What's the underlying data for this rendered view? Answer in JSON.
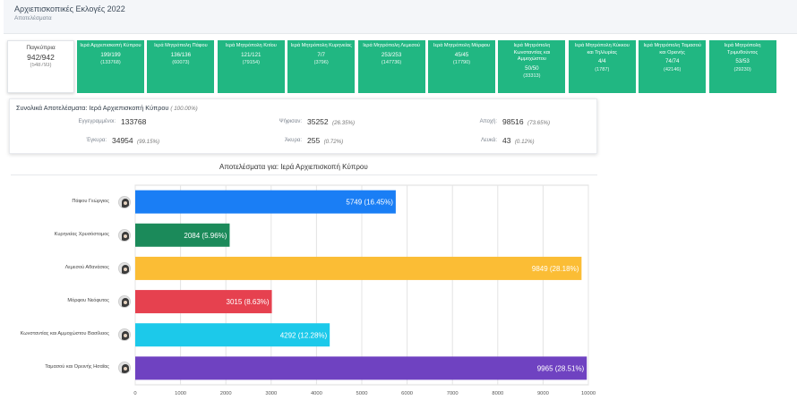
{
  "header": {
    "title": "Αρχιεπισκοπικές Εκλογές 2022",
    "subtitle": "Αποτελέσματα"
  },
  "summary_tile": {
    "label": "Παγκύπρια",
    "count": "942/942",
    "voters": "(548793)"
  },
  "districts": [
    {
      "name": "Ιερά Αρχιεπισκοπή Κύπρου",
      "count": "199/199",
      "voters": "(133768)"
    },
    {
      "name": "Ιερά Μητρόπολη Πάφου",
      "count": "136/136",
      "voters": "(60073)"
    },
    {
      "name": "Ιερά Μητρόπολη Κιτίου",
      "count": "121/121",
      "voters": "(79154)"
    },
    {
      "name": "Ιερά Μητρόπολη Κυρηνείας",
      "count": "7/7",
      "voters": "(3796)"
    },
    {
      "name": "Ιερά Μητρόπολη Λεμεσού",
      "count": "253/253",
      "voters": "(147736)"
    },
    {
      "name": "Ιερά Μητρόπολη Μόρφου",
      "count": "45/45",
      "voters": "(17790)"
    },
    {
      "name": "Ιερά Μητρόπολη Κωνσταντίας και Αμμοχώστου",
      "count": "50/50",
      "voters": "(33313)"
    },
    {
      "name": "Ιερά Μητρόπολη Κύκκου και Τηλλυρίας",
      "count": "4/4",
      "voters": "(1787)"
    },
    {
      "name": "Ιερά Μητρόπολη Ταμασού και Ορεινής",
      "count": "74/74",
      "voters": "(42146)"
    },
    {
      "name": "Ιερά Μητρόπολη Τριμυθούντος",
      "count": "53/53",
      "voters": "(29230)"
    }
  ],
  "summary": {
    "title": "Συνολικά Αποτελέσματα: Ιερά Αρχιεπισκοπή Κύπρου",
    "title_pct": "( 100.00%)",
    "registered": {
      "label": "Εγγεγραμμένοι:",
      "value": "133768",
      "pct": ""
    },
    "voted": {
      "label": "Ψήφισαν:",
      "value": "35252",
      "pct": "(26.35%)"
    },
    "abstention": {
      "label": "Αποχή:",
      "value": "98516",
      "pct": "(73.65%)"
    },
    "valid": {
      "label": "Έγκυρα:",
      "value": "34954",
      "pct": "(99.15%)"
    },
    "invalid": {
      "label": "Άκυρα:",
      "value": "255",
      "pct": "(0.72%)"
    },
    "blank": {
      "label": "Λευκά:",
      "value": "43",
      "pct": "(0.12%)"
    }
  },
  "colors": {
    "tile": "#21b782",
    "bars": [
      "#1a7ef5",
      "#1b8a5a",
      "#fbbd35",
      "#e6414f",
      "#1cc9ea",
      "#6f42c1"
    ],
    "grid": "#e4e4e4"
  },
  "chart_data": {
    "type": "bar",
    "orientation": "horizontal",
    "title": "Αποτελέσματα για: Ιερά Αρχιεπισκοπή Κύπρου",
    "categories": [
      "Πάφου Γεώργιος",
      "Κυρηνείας Χρυσόστομος",
      "Λεμεσού Αθανάσιος",
      "Μόρφου Νεόφυτος",
      "Κωνσταντίας και Αμμοχώστου Βασίλειος",
      "Ταμασού και Ορεινής Ησαΐας"
    ],
    "values": [
      5749,
      2084,
      9849,
      3015,
      4292,
      9965
    ],
    "labels": [
      "5749 (16.45%)",
      "2084 (5.96%)",
      "9849 (28.18%)",
      "3015 (8.63%)",
      "4292 (12.28%)",
      "9965 (28.51%)"
    ],
    "xlim": [
      0,
      10000
    ],
    "xticks": [
      0,
      1000,
      2000,
      3000,
      4000,
      5000,
      6000,
      7000,
      8000,
      9000,
      10000
    ],
    "xlabel": "",
    "ylabel": "",
    "grid": true,
    "legend": "none"
  }
}
